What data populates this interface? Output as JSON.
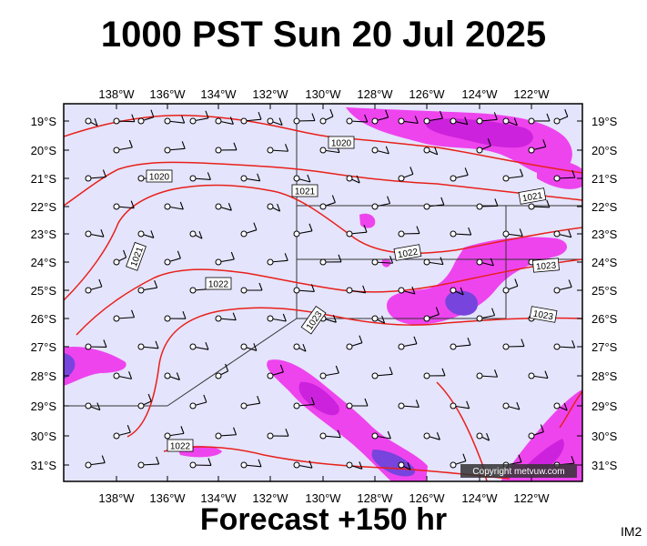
{
  "header": {
    "title": "1000 PST Sun 20 Jul 2025"
  },
  "footer": {
    "forecast": "Forecast +150 hr",
    "code": "IM2"
  },
  "map": {
    "lon_labels": [
      "138°W",
      "136°W",
      "134°W",
      "132°W",
      "130°W",
      "128°W",
      "126°W",
      "124°W",
      "122°W"
    ],
    "lat_labels": [
      "19°S",
      "20°S",
      "21°S",
      "22°S",
      "23°S",
      "24°S",
      "25°S",
      "26°S",
      "27°S",
      "28°S",
      "29°S",
      "30°S",
      "31°S"
    ],
    "isobar_labels": [
      "1020",
      "1020",
      "1021",
      "1021",
      "1021",
      "1022",
      "1022",
      "1023",
      "1023",
      "1023",
      "1022"
    ],
    "copyright": "Copyright metvuw.com",
    "colors": {
      "background": "#e4e4fc",
      "isobar": "#e8201a",
      "rain_light": "#ee44ee",
      "rain_mid": "#cc22dd",
      "rain_heavy": "#7744dd"
    }
  }
}
